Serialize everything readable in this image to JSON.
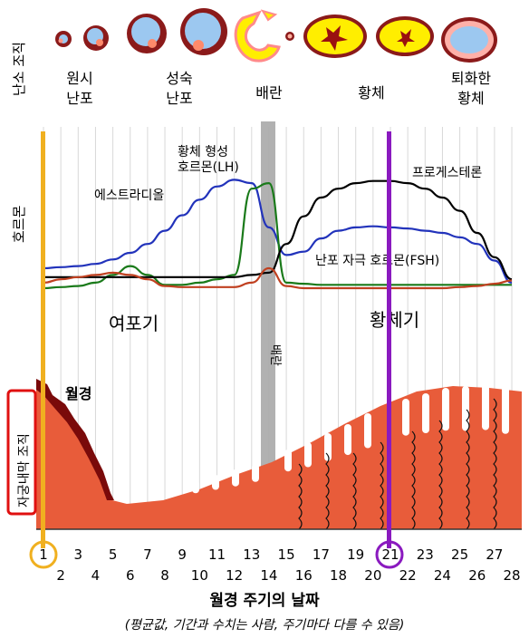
{
  "ovary": {
    "row_label": "난소 조직",
    "stage_labels": [
      {
        "line1": "원시",
        "line2": "난포"
      },
      {
        "line1": "성숙",
        "line2": "난포"
      },
      {
        "line1": "배란",
        "line2": ""
      },
      {
        "line1": "황체",
        "line2": ""
      },
      {
        "line1": "퇴화한",
        "line2": "황체"
      }
    ]
  },
  "hormones": {
    "row_label": "호르몬",
    "series": [
      {
        "name": "에스트라디올",
        "color": "#2233bb",
        "values": [
          0.18,
          0.19,
          0.2,
          0.22,
          0.26,
          0.32,
          0.4,
          0.52,
          0.66,
          0.8,
          0.92,
          0.98,
          0.95,
          0.55,
          0.3,
          0.33,
          0.45,
          0.52,
          0.55,
          0.56,
          0.55,
          0.54,
          0.52,
          0.5,
          0.46,
          0.4,
          0.25,
          0.05
        ]
      },
      {
        "name": "황체 형성 호르몬(LH)",
        "color": "#1a7a1a",
        "values": [
          0.0,
          0.01,
          0.02,
          0.05,
          0.12,
          0.2,
          0.12,
          0.03,
          0.03,
          0.05,
          0.08,
          0.12,
          0.9,
          0.95,
          0.05,
          0.04,
          0.03,
          0.03,
          0.03,
          0.03,
          0.03,
          0.03,
          0.03,
          0.03,
          0.03,
          0.03,
          0.03,
          0.03
        ]
      },
      {
        "name": "프로게스테론",
        "color": "#000000",
        "values": [
          0.1,
          0.1,
          0.1,
          0.1,
          0.1,
          0.1,
          0.1,
          0.1,
          0.1,
          0.1,
          0.1,
          0.1,
          0.12,
          0.14,
          0.4,
          0.65,
          0.82,
          0.9,
          0.95,
          0.97,
          0.97,
          0.95,
          0.9,
          0.82,
          0.7,
          0.5,
          0.28,
          0.08
        ]
      },
      {
        "name": "난포 자극 호르몬(FSH)",
        "color": "#c04020",
        "values": [
          0.05,
          0.08,
          0.1,
          0.12,
          0.14,
          0.12,
          0.08,
          0.02,
          0.01,
          0.01,
          0.01,
          0.01,
          0.05,
          0.18,
          0.02,
          0.0,
          0.0,
          0.0,
          0.0,
          0.0,
          0.0,
          0.0,
          0.0,
          0.0,
          0.01,
          0.02,
          0.04,
          0.07
        ]
      }
    ]
  },
  "phases": {
    "follicular": "여포기",
    "luteal": "황체기",
    "ovulation_band": "배란"
  },
  "endometrium": {
    "row_label": "자궁내막 조직",
    "menstruation_label": "월경"
  },
  "axis": {
    "odd_days": [
      "1",
      "3",
      "5",
      "7",
      "9",
      "11",
      "13",
      "15",
      "17",
      "19",
      "21",
      "23",
      "25",
      "27"
    ],
    "even_days": [
      "2",
      "4",
      "6",
      "8",
      "10",
      "12",
      "14",
      "16",
      "18",
      "20",
      "22",
      "24",
      "26",
      "28"
    ],
    "title": "월경 주기의 날짜",
    "note": "(평균값, 기간과 수치는 사람, 주기마다 다를 수 있음)"
  },
  "markers": [
    {
      "day": "1",
      "color": "#f0b020"
    },
    {
      "day": "21",
      "color": "#8a1abf"
    }
  ],
  "colors": {
    "tissue": "#e85c3a",
    "blood": "#7a0a0a",
    "follicle_red": "#8b1a1a",
    "corpus_yellow": "#ffee00",
    "highlight_red": "#e01010"
  }
}
